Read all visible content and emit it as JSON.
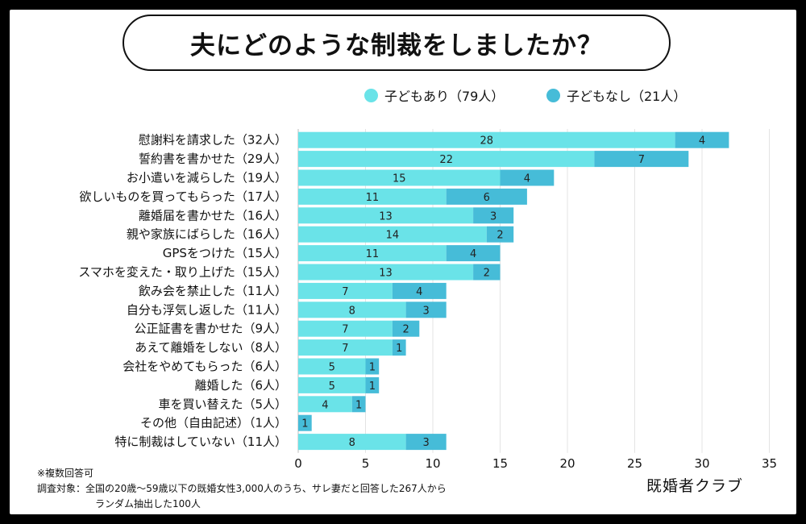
{
  "title": "夫にどのような制裁をしましたか？",
  "legend": [
    {
      "label": "子どもあり（79人）",
      "color": "#6ae3e8"
    },
    {
      "label": "子どもなし（21人）",
      "color": "#46bcd8"
    }
  ],
  "chart_data": {
    "type": "bar",
    "orientation": "horizontal",
    "stacked": true,
    "categories": [
      "慰謝料を請求した（32人）",
      "誓約書を書かせた（29人）",
      "お小遣いを減らした（19人）",
      "欲しいものを買ってもらった（17人）",
      "離婚届を書かせた（16人）",
      "親や家族にばらした（16人）",
      "GPSをつけた（15人）",
      "スマホを変えた・取り上げた（15人）",
      "飲み会を禁止した（11人）",
      "自分も浮気し返した（11人）",
      "公正証書を書かせた（9人）",
      "あえて離婚をしない（8人）",
      "会社をやめてもらった（6人）",
      "離婚した（6人）",
      "車を買い替えた（5人）",
      "その他（自由記述）（1人）",
      "特に制裁はしていない（11人）"
    ],
    "series": [
      {
        "name": "子どもあり（79人）",
        "color": "#6ae3e8",
        "values": [
          28,
          22,
          15,
          11,
          13,
          14,
          11,
          13,
          7,
          8,
          7,
          7,
          5,
          5,
          4,
          0,
          8
        ]
      },
      {
        "name": "子どもなし（21人）",
        "color": "#46bcd8",
        "values": [
          4,
          7,
          4,
          6,
          3,
          2,
          4,
          2,
          4,
          3,
          2,
          1,
          1,
          1,
          1,
          1,
          3
        ]
      }
    ],
    "xlim": [
      0,
      35
    ],
    "xticks": [
      0,
      5,
      10,
      15,
      20,
      25,
      30,
      35
    ],
    "grid": true
  },
  "notes": {
    "multi": "※複数回答可",
    "survey_line1": "調査対象：全国の20歳〜59歳以下の既婚女性3,000人のうち、サレ妻だと回答した267人から",
    "survey_line2": "ランダム抽出した100人"
  },
  "brand": "既婚者クラブ"
}
